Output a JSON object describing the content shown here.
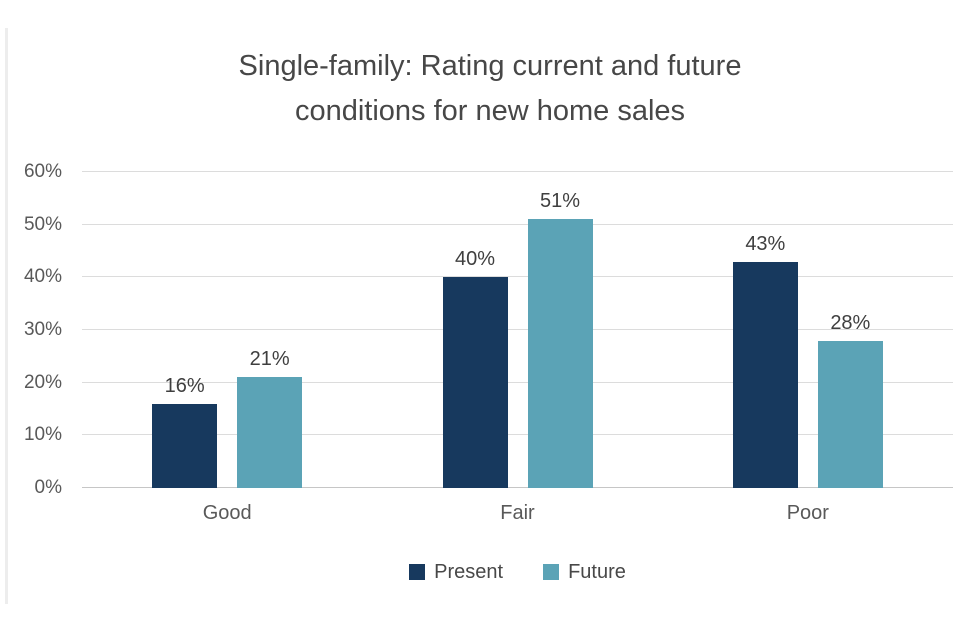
{
  "page": {
    "background_color": "#ffffff"
  },
  "chart_data": {
    "type": "bar",
    "title": "Single-family: Rating current and future conditions for new home sales",
    "title_lines": [
      "Single-family: Rating current and future",
      "conditions for new home sales"
    ],
    "categories": [
      "Good",
      "Fair",
      "Poor"
    ],
    "series": [
      {
        "name": "Present",
        "color": "#17395E",
        "values": [
          16,
          40,
          43
        ],
        "labels": [
          "16%",
          "40%",
          "43%"
        ]
      },
      {
        "name": "Future",
        "color": "#5BA3B6",
        "values": [
          21,
          51,
          28
        ],
        "labels": [
          "21%",
          "51%",
          "28%"
        ]
      }
    ],
    "xlabel": "",
    "ylabel": "",
    "ylim": [
      0,
      60
    ],
    "ytick_values": [
      0,
      10,
      20,
      30,
      40,
      50,
      60
    ],
    "ytick_labels": [
      "0%",
      "10%",
      "20%",
      "30%",
      "40%",
      "50%",
      "60%"
    ],
    "grid": true,
    "legend_position": "bottom",
    "colors": {
      "gridline": "#dcdcdc",
      "axis_line": "#c6c6c6",
      "title_text": "#474747",
      "tick_text": "#595959",
      "data_label_text": "#3f3f3f",
      "legend_text": "#484848"
    }
  }
}
